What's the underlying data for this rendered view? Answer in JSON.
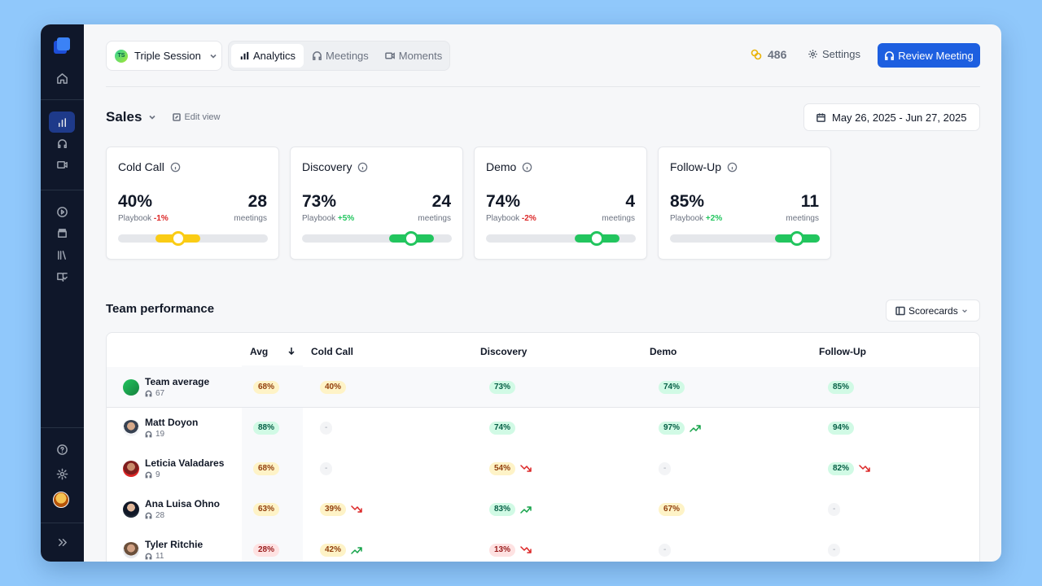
{
  "topbar": {
    "session": {
      "initials": "TS",
      "name": "Triple Session"
    },
    "tabs": [
      {
        "label": "Analytics"
      },
      {
        "label": "Meetings"
      },
      {
        "label": "Moments"
      }
    ],
    "credits": "486",
    "settings_label": "Settings",
    "review_label": "Review Meeting"
  },
  "header": {
    "title": "Sales",
    "edit_label": "Edit view",
    "date_range": "May 26, 2025 - Jun 27, 2025"
  },
  "cards": [
    {
      "name": "Cold Call",
      "pct": "40%",
      "playbook_label": "Playbook",
      "delta": "-1%",
      "delta_color": "#dc2626",
      "count": "28",
      "count_label": "meetings",
      "range_start": 0.25,
      "range_end": 0.55,
      "knob": 0.4,
      "color": "#facc15"
    },
    {
      "name": "Discovery",
      "pct": "73%",
      "playbook_label": "Playbook",
      "delta": "+5%",
      "delta_color": "#22c55e",
      "count": "24",
      "count_label": "meetings",
      "range_start": 0.58,
      "range_end": 0.88,
      "knob": 0.73,
      "color": "#22c55e"
    },
    {
      "name": "Demo",
      "pct": "74%",
      "playbook_label": "Playbook",
      "delta": "-2%",
      "delta_color": "#dc2626",
      "count": "4",
      "count_label": "meetings",
      "range_start": 0.59,
      "range_end": 0.89,
      "knob": 0.74,
      "color": "#22c55e"
    },
    {
      "name": "Follow-Up",
      "pct": "85%",
      "playbook_label": "Playbook",
      "delta": "+2%",
      "delta_color": "#22c55e",
      "count": "11",
      "count_label": "meetings",
      "range_start": 0.7,
      "range_end": 1.0,
      "knob": 0.85,
      "color": "#22c55e"
    }
  ],
  "team": {
    "title": "Team performance",
    "scorecards_label": "Scorecards",
    "columns": [
      "Avg",
      "Cold Call",
      "Discovery",
      "Demo",
      "Follow-Up"
    ],
    "rows": [
      {
        "name": "Team average",
        "meetings": "67",
        "cells": [
          {
            "v": "68%",
            "c": "yellow",
            "t": ""
          },
          {
            "v": "40%",
            "c": "yellow",
            "t": ""
          },
          {
            "v": "73%",
            "c": "green",
            "t": ""
          },
          {
            "v": "74%",
            "c": "green",
            "t": ""
          },
          {
            "v": "85%",
            "c": "green",
            "t": ""
          }
        ]
      },
      {
        "name": "Matt Doyon",
        "meetings": "19",
        "cells": [
          {
            "v": "88%",
            "c": "green",
            "t": ""
          },
          {
            "v": "-",
            "c": "none",
            "t": ""
          },
          {
            "v": "74%",
            "c": "green",
            "t": ""
          },
          {
            "v": "97%",
            "c": "green",
            "t": "up"
          },
          {
            "v": "94%",
            "c": "green",
            "t": ""
          }
        ]
      },
      {
        "name": "Leticia Valadares",
        "meetings": "9",
        "cells": [
          {
            "v": "68%",
            "c": "yellow",
            "t": ""
          },
          {
            "v": "-",
            "c": "none",
            "t": ""
          },
          {
            "v": "54%",
            "c": "yellow",
            "t": "down"
          },
          {
            "v": "-",
            "c": "none",
            "t": ""
          },
          {
            "v": "82%",
            "c": "green",
            "t": "down"
          }
        ]
      },
      {
        "name": "Ana Luisa Ohno",
        "meetings": "28",
        "cells": [
          {
            "v": "63%",
            "c": "yellow",
            "t": ""
          },
          {
            "v": "39%",
            "c": "yellow",
            "t": "down"
          },
          {
            "v": "83%",
            "c": "green",
            "t": "up"
          },
          {
            "v": "67%",
            "c": "yellow",
            "t": ""
          },
          {
            "v": "-",
            "c": "none",
            "t": ""
          }
        ]
      },
      {
        "name": "Tyler Ritchie",
        "meetings": "11",
        "cells": [
          {
            "v": "28%",
            "c": "red",
            "t": ""
          },
          {
            "v": "42%",
            "c": "yellow",
            "t": "up"
          },
          {
            "v": "13%",
            "c": "red",
            "t": "down"
          },
          {
            "v": "-",
            "c": "none",
            "t": ""
          },
          {
            "v": "-",
            "c": "none",
            "t": ""
          }
        ]
      }
    ]
  }
}
